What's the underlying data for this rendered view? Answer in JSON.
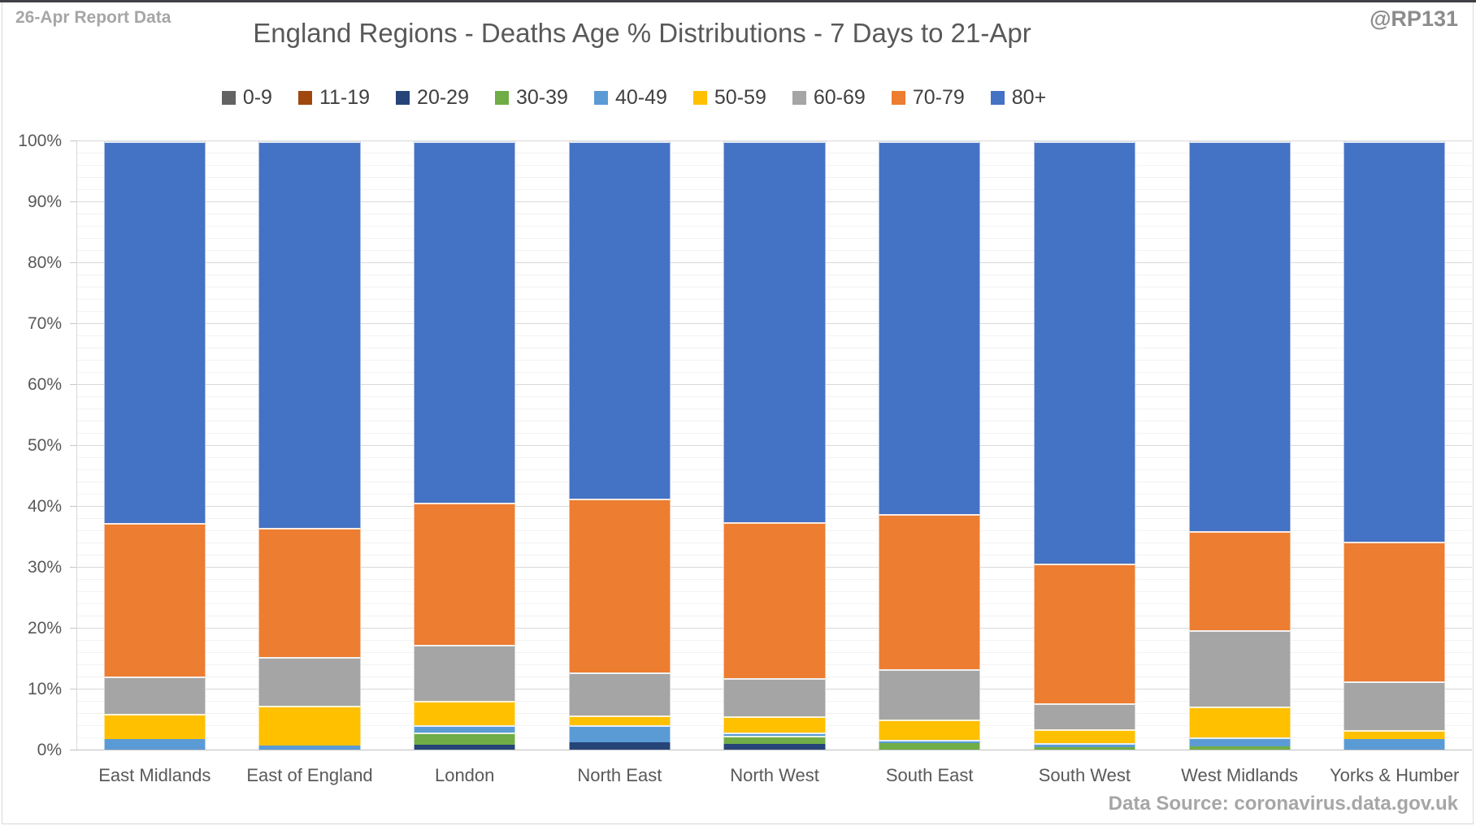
{
  "header": {
    "report_note": "26-Apr Report Data",
    "title": "England Regions - Deaths Age % Distributions - 7 Days to 21-Apr",
    "handle": "@RP131"
  },
  "footer": {
    "data_source": "Data Source: coronavirus.data.gov.uk"
  },
  "y_axis": {
    "tick_labels": [
      "0%",
      "10%",
      "20%",
      "30%",
      "40%",
      "50%",
      "60%",
      "70%",
      "80%",
      "90%",
      "100%"
    ]
  },
  "colors": {
    "title_text": "#595959",
    "axis_text": "#595959",
    "muted_text": "#a6a6a6",
    "major_gridline": "#d9d9d9",
    "minor_gridline": "#f2f2f2"
  },
  "chart_data": {
    "type": "bar",
    "stacked": true,
    "percent_stacked": true,
    "title": "England Regions - Deaths Age % Distributions - 7 Days to 21-Apr",
    "xlabel": "",
    "ylabel": "",
    "ylim": [
      0,
      100
    ],
    "ytick_step": 10,
    "minor_gridline_step": 2,
    "grid": true,
    "legend_position": "top",
    "categories": [
      "East Midlands",
      "East of England",
      "London",
      "North East",
      "North West",
      "South East",
      "South West",
      "West Midlands",
      "Yorks & Humber"
    ],
    "series": [
      {
        "name": "0-9",
        "color": "#636363",
        "values": [
          0,
          0,
          0,
          0,
          0,
          0,
          0,
          0,
          0
        ]
      },
      {
        "name": "11-19",
        "color": "#9E480E",
        "values": [
          0,
          0,
          0,
          0,
          0,
          0,
          0,
          0,
          0
        ]
      },
      {
        "name": "20-29",
        "color": "#264478",
        "values": [
          0,
          0,
          1.0,
          1.3,
          1.1,
          0,
          0,
          0,
          0
        ]
      },
      {
        "name": "30-39",
        "color": "#70AD47",
        "values": [
          0,
          0,
          2.0,
          0,
          1.3,
          1.2,
          0.6,
          0.7,
          0
        ]
      },
      {
        "name": "40-49",
        "color": "#5B9BD5",
        "values": [
          1.9,
          0.8,
          1.1,
          2.9,
          0.5,
          0.6,
          0.6,
          1.4,
          1.9
        ]
      },
      {
        "name": "50-59",
        "color": "#FFC000",
        "values": [
          4.1,
          6.5,
          4.0,
          1.5,
          2.7,
          3.3,
          2.3,
          5.1,
          1.4
        ]
      },
      {
        "name": "60-69",
        "color": "#A5A5A5",
        "values": [
          6.1,
          8.0,
          9.2,
          7.1,
          6.3,
          8.3,
          4.2,
          12.5,
          8.1
        ]
      },
      {
        "name": "70-79",
        "color": "#ED7D31",
        "values": [
          25.3,
          21.2,
          23.4,
          28.5,
          25.6,
          25.4,
          23.0,
          16.3,
          22.9
        ]
      },
      {
        "name": "80+",
        "color": "#4472C4",
        "values": [
          62.6,
          63.5,
          59.3,
          58.7,
          62.5,
          61.2,
          69.3,
          64.0,
          65.7
        ]
      }
    ]
  }
}
